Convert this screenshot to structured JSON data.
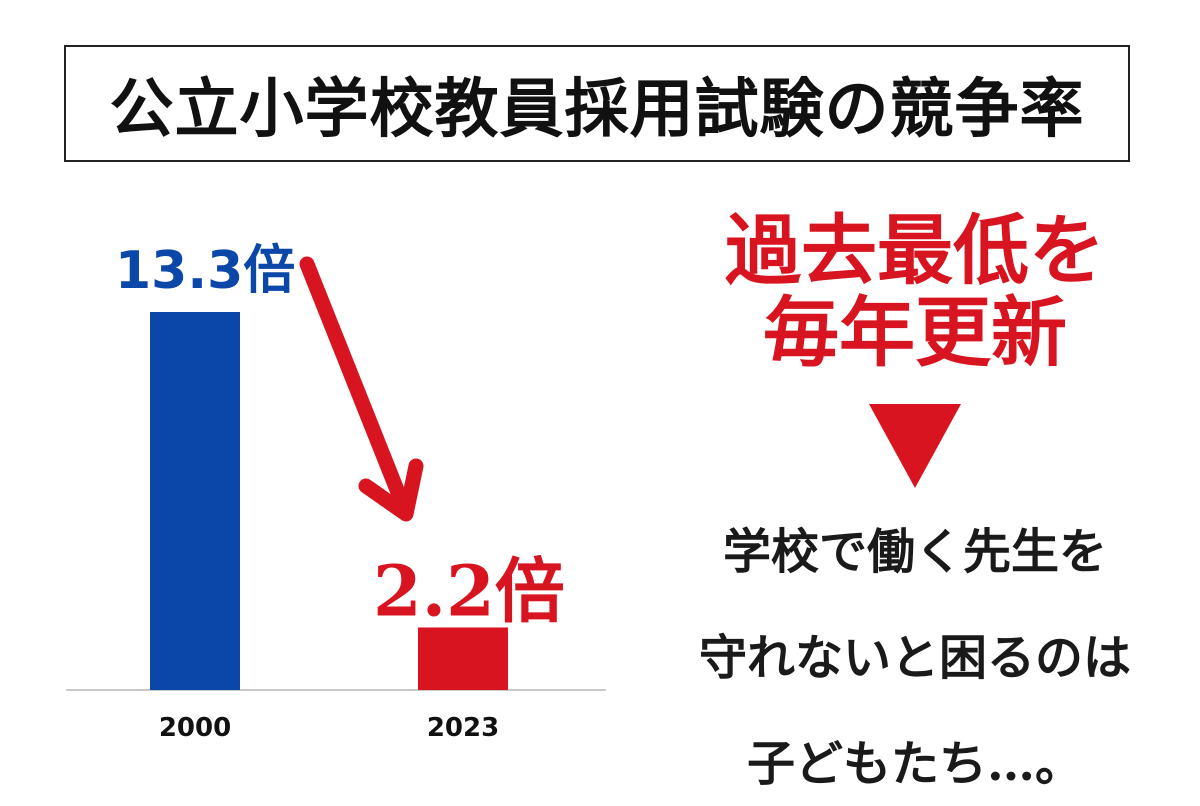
{
  "title": "公立小学校教員採用試験の競争率",
  "chart_data": {
    "type": "bar",
    "title": "公立小学校教員採用試験の競争率",
    "categories": [
      "2000",
      "2023"
    ],
    "values": [
      13.3,
      2.2
    ],
    "value_labels": [
      "13.3倍",
      "2.2倍"
    ],
    "unit": "倍",
    "colors": [
      "#0a47a8",
      "#d7141f"
    ],
    "ylim": [
      0,
      13.3
    ],
    "grid": false,
    "legend": "none"
  },
  "colors": {
    "accent_red": "#d7141f",
    "accent_blue": "#0a47a8"
  },
  "callout": {
    "headline_line1": "過去最低を",
    "headline_line2": "毎年更新",
    "message_line1": "学校で働く先生を",
    "message_line2": "守れないと困るのは",
    "message_line3": "子どもたち…。"
  }
}
